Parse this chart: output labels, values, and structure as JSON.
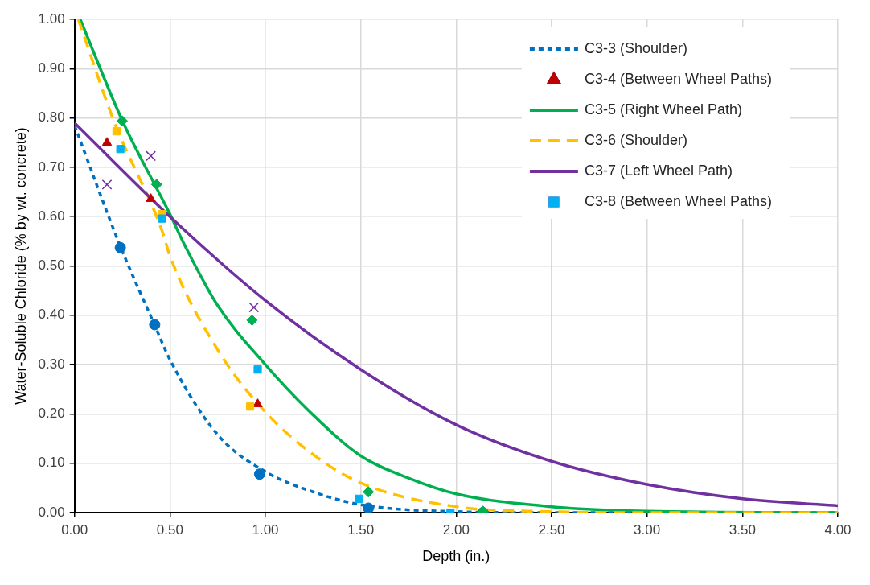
{
  "chart_data": {
    "type": "scatter",
    "xlabel": "Depth (in.)",
    "ylabel": "Water-Soluble Chloride (% by wt. concrete)",
    "xlim": [
      0,
      4
    ],
    "ylim": [
      0,
      1
    ],
    "xticks": [
      {
        "value": 0,
        "label": "0.00"
      },
      {
        "value": 0.5,
        "label": "0.50"
      },
      {
        "value": 1,
        "label": "1.00"
      },
      {
        "value": 1.5,
        "label": "1.50"
      },
      {
        "value": 2,
        "label": "2.00"
      },
      {
        "value": 2.5,
        "label": "2.50"
      },
      {
        "value": 3,
        "label": "3.00"
      },
      {
        "value": 3.5,
        "label": "3.50"
      },
      {
        "value": 4,
        "label": "4.00"
      }
    ],
    "yticks": [
      {
        "value": 0,
        "label": "0.00"
      },
      {
        "value": 0.1,
        "label": "0.10"
      },
      {
        "value": 0.2,
        "label": "0.20"
      },
      {
        "value": 0.3,
        "label": "0.30"
      },
      {
        "value": 0.4,
        "label": "0.40"
      },
      {
        "value": 0.5,
        "label": "0.50"
      },
      {
        "value": 0.6,
        "label": "0.60"
      },
      {
        "value": 0.7,
        "label": "0.70"
      },
      {
        "value": 0.8,
        "label": "0.80"
      },
      {
        "value": 0.9,
        "label": "0.90"
      },
      {
        "value": 1,
        "label": "1.00"
      }
    ],
    "grid": true,
    "legend": "top right",
    "series": [
      {
        "name": "C3-3 (Shoulder)",
        "type": "line",
        "marker": "none",
        "line_style": "dotted",
        "color": "#0070c0",
        "x": [
          0,
          0.24,
          0.42,
          0.5,
          0.75,
          1.0,
          1.25,
          1.5,
          2.0,
          2.5,
          3.0,
          4.0
        ],
        "values": [
          0.785,
          0.54,
          0.38,
          0.31,
          0.158,
          0.083,
          0.042,
          0.016,
          0.002,
          0,
          0,
          0
        ]
      },
      {
        "name": "C3-4 (Between Wheel Paths)",
        "type": "scatter",
        "marker": "triangle",
        "color": "#c00000",
        "x": [
          0.17,
          0.4,
          0.96
        ],
        "values": [
          0.75,
          0.636,
          0.22
        ]
      },
      {
        "name": "C3-5 (Right Wheel Path)",
        "type": "line",
        "marker": "none",
        "line_style": "solid",
        "color": "#00b050",
        "x": [
          0.03,
          0.25,
          0.5,
          0.58,
          0.75,
          1.0,
          1.25,
          1.5,
          1.75,
          2.0,
          2.5,
          3.0,
          4.0
        ],
        "values": [
          1.0,
          0.795,
          0.605,
          0.54,
          0.42,
          0.3,
          0.198,
          0.115,
          0.07,
          0.038,
          0.012,
          0.003,
          0
        ]
      },
      {
        "name": "C3-6 (Shoulder)",
        "type": "line",
        "marker": "none",
        "line_style": "dashed",
        "color": "#ffc000",
        "x": [
          0.02,
          0.21,
          0.46,
          0.5,
          0.75,
          1.0,
          1.25,
          1.5,
          2.0,
          2.5,
          3.0,
          4.0
        ],
        "values": [
          1.0,
          0.79,
          0.57,
          0.52,
          0.33,
          0.204,
          0.118,
          0.06,
          0.012,
          0.002,
          0,
          0
        ]
      },
      {
        "name": "C3-7 (Left Wheel Path)",
        "type": "line",
        "marker": "none",
        "line_style": "solid",
        "color": "#7030a0",
        "x": [
          0,
          0.5,
          1.0,
          1.5,
          2.0,
          2.5,
          3.0,
          3.5,
          4.0
        ],
        "values": [
          0.79,
          0.6,
          0.43,
          0.29,
          0.178,
          0.104,
          0.057,
          0.028,
          0.014
        ]
      },
      {
        "type": "scatter",
        "marker": "square",
        "color": "#ffc000",
        "x": [
          0.22,
          0.46,
          0.92
        ],
        "values": [
          0.773,
          0.605,
          0.215
        ]
      },
      {
        "type": "scatter",
        "marker": "circle",
        "color": "#0070c0",
        "x": [
          0.24,
          0.42,
          0.97,
          1.54,
          2.14
        ],
        "values": [
          0.537,
          0.381,
          0.078,
          0.009,
          0.0
        ]
      },
      {
        "type": "scatter",
        "marker": "diamond",
        "color": "#00b050",
        "x": [
          0.25,
          0.43,
          0.93,
          1.54,
          2.14
        ],
        "values": [
          0.794,
          0.665,
          0.39,
          0.042,
          0.003
        ]
      },
      {
        "type": "scatter",
        "marker": "cross",
        "color": "#7030a0",
        "x": [
          0.17,
          0.4,
          0.94
        ],
        "values": [
          0.665,
          0.723,
          0.416
        ]
      },
      {
        "name": "C3-8 (Between Wheel Paths)",
        "type": "scatter",
        "marker": "square",
        "color": "#00b0f0",
        "x": [
          0.24,
          0.46,
          0.96,
          1.49,
          1.97
        ],
        "values": [
          0.737,
          0.596,
          0.29,
          0.028,
          0.0
        ]
      }
    ]
  }
}
